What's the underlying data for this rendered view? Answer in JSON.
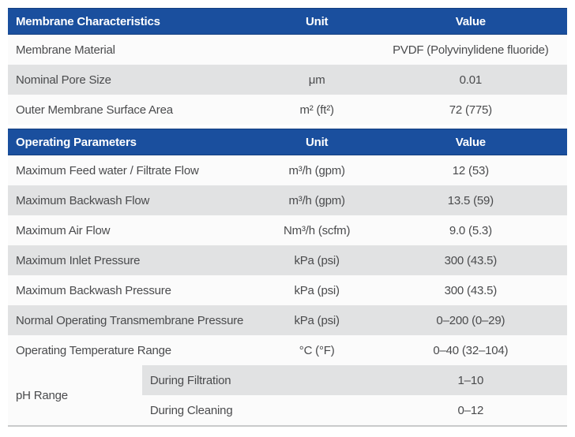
{
  "theme": {
    "header_bg": "#1a4f9e",
    "header_text": "#ffffff",
    "row_alt_bg": "#e1e2e3",
    "row_bg": "#fbfbfb",
    "body_text": "#4a4b4d",
    "bottom_border": "#c9cacb"
  },
  "table": {
    "columns": {
      "unit_label": "Unit",
      "value_label": "Value"
    },
    "sections": [
      {
        "title": "Membrane Characteristics",
        "rows": [
          {
            "label": "Membrane Material",
            "unit": "",
            "value": "PVDF (Polyvinylidene fluoride)"
          },
          {
            "label": "Nominal Pore Size",
            "unit": "μm",
            "value": "0.01"
          },
          {
            "label": "Outer Membrane Surface Area",
            "unit": "m² (ft²)",
            "value": "72 (775)"
          }
        ]
      },
      {
        "title": "Operating Parameters",
        "rows": [
          {
            "label": "Maximum Feed water / Filtrate Flow",
            "unit": "m³/h (gpm)",
            "value": "12 (53)"
          },
          {
            "label": "Maximum Backwash Flow",
            "unit": "m³/h (gpm)",
            "value": "13.5 (59)"
          },
          {
            "label": "Maximum Air Flow",
            "unit": "Nm³/h (scfm)",
            "value": "9.0 (5.3)"
          },
          {
            "label": "Maximum Inlet Pressure",
            "unit": "kPa (psi)",
            "value": "300 (43.5)"
          },
          {
            "label": "Maximum Backwash Pressure",
            "unit": "kPa (psi)",
            "value": "300 (43.5)"
          },
          {
            "label": "Normal Operating Transmembrane Pressure",
            "unit": "kPa (psi)",
            "value": "0–200 (0–29)"
          },
          {
            "label": "Operating Temperature Range",
            "unit": "°C (°F)",
            "value": "0–40 (32–104)"
          }
        ]
      }
    ],
    "ph_range": {
      "label": "pH Range",
      "sub_rows": [
        {
          "condition": "During Filtration",
          "value": "1–10"
        },
        {
          "condition": "During Cleaning",
          "value": "0–12"
        }
      ]
    }
  }
}
